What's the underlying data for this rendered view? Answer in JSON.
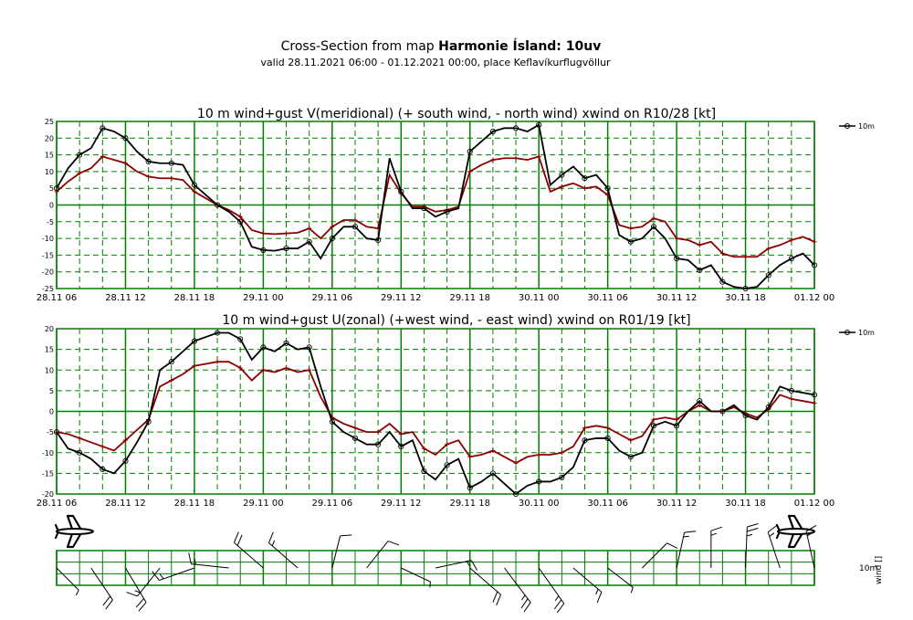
{
  "header": {
    "title_prefix": "Cross-Section from map ",
    "title_bold": "Harmonie Ísland: 10uv",
    "subtitle": "valid 28.11.2021 06:00 - 01.12.2021 00:00, place Keflavíkurflugvöllur"
  },
  "colors": {
    "grid": "#008000",
    "wind": "#000000",
    "gust": "#8b0000"
  },
  "x_ticks": [
    "28.11 06",
    "28.11 12",
    "28.11 18",
    "29.11 00",
    "29.11 06",
    "29.11 12",
    "29.11 18",
    "30.11 00",
    "30.11 06",
    "30.11 12",
    "30.11 18",
    "01.12 00"
  ],
  "chart_data": [
    {
      "type": "line",
      "title": "10 m wind+gust V(meridional) (+ south wind, - north wind) xwind on R10/28 [kt]",
      "legend_label": "10m",
      "ylim": [
        -25,
        25
      ],
      "yticks": [
        25,
        20,
        15,
        10,
        5,
        0,
        -5,
        -10,
        -15,
        -20,
        -25
      ],
      "x_start_hour": 0,
      "x_end_hour": 66,
      "series": [
        {
          "name": "10m wind",
          "x": [
            0,
            1,
            2,
            3,
            4,
            5,
            6,
            7,
            8,
            9,
            10,
            11,
            12,
            13,
            14,
            15,
            16,
            17,
            18,
            19,
            20,
            21,
            22,
            23,
            24,
            25,
            26,
            27,
            28,
            29,
            30,
            31,
            32,
            33,
            34,
            35,
            36,
            37,
            38,
            39,
            40,
            41,
            42,
            43,
            44,
            45,
            46,
            47,
            48,
            49,
            50,
            51,
            52,
            53,
            54,
            55,
            56,
            57,
            58,
            59,
            60,
            61,
            62,
            63,
            64,
            65,
            66
          ],
          "values": [
            5,
            11,
            15,
            17,
            23,
            22,
            20,
            16,
            13,
            12.5,
            12.5,
            12,
            6,
            3,
            0,
            -2,
            -5,
            -12.5,
            -13.5,
            -13.7,
            -13,
            -13,
            -11,
            -16,
            -10,
            -6.5,
            -6.5,
            -10,
            -10.5,
            14,
            4,
            -1,
            -1,
            -3.5,
            -2,
            -1,
            16,
            19,
            22,
            23,
            23,
            22,
            24,
            6,
            9,
            11.5,
            8,
            9,
            5,
            -9,
            -11,
            -10,
            -6.5,
            -10,
            -16,
            -16.5,
            -19.5,
            -18,
            -23,
            -24.5,
            -25,
            -24.5,
            -21,
            -18,
            -16,
            -14.5,
            -18
          ]
        },
        {
          "name": "10m gust",
          "x": [
            0,
            1,
            2,
            3,
            4,
            5,
            6,
            7,
            8,
            9,
            10,
            11,
            12,
            13,
            14,
            15,
            16,
            17,
            18,
            19,
            20,
            21,
            22,
            23,
            24,
            25,
            26,
            27,
            28,
            29,
            30,
            31,
            32,
            33,
            34,
            35,
            36,
            37,
            38,
            39,
            40,
            41,
            42,
            43,
            44,
            45,
            46,
            47,
            48,
            49,
            50,
            51,
            52,
            53,
            54,
            55,
            56,
            57,
            58,
            59,
            60,
            61,
            62,
            63,
            64,
            65,
            66
          ],
          "values": [
            4,
            7,
            9.5,
            11,
            14.5,
            13.5,
            12.5,
            10,
            8.5,
            8,
            8,
            7.5,
            4,
            2,
            0,
            -1.5,
            -3.5,
            -7.5,
            -8.5,
            -8.7,
            -8.5,
            -8.3,
            -7,
            -10,
            -6.5,
            -4.5,
            -4.5,
            -6.5,
            -7,
            9,
            3.5,
            -0.5,
            -0.5,
            -2,
            -1.5,
            -0.5,
            10,
            12,
            13.5,
            14,
            14,
            13.5,
            14.5,
            4,
            5.5,
            6.5,
            5,
            5.5,
            3,
            -6,
            -7,
            -6.5,
            -4,
            -5,
            -10,
            -10.5,
            -12,
            -11,
            -14.5,
            -15.5,
            -15.5,
            -15.5,
            -13,
            -12,
            -10.5,
            -9.5,
            -11
          ]
        }
      ]
    },
    {
      "type": "line",
      "title": "10 m wind+gust U(zonal) (+west wind, - east wind) xwind on R01/19 [kt]",
      "legend_label": "10m",
      "ylim": [
        -20,
        20
      ],
      "yticks": [
        20,
        15,
        10,
        5,
        0,
        -5,
        -10,
        -15,
        -20
      ],
      "x_start_hour": 0,
      "x_end_hour": 66,
      "series": [
        {
          "name": "10m wind",
          "x": [
            0,
            1,
            2,
            3,
            4,
            5,
            6,
            7,
            8,
            9,
            10,
            11,
            12,
            13,
            14,
            15,
            16,
            17,
            18,
            19,
            20,
            21,
            22,
            23,
            24,
            25,
            26,
            27,
            28,
            29,
            30,
            31,
            32,
            33,
            34,
            35,
            36,
            37,
            38,
            39,
            40,
            41,
            42,
            43,
            44,
            45,
            46,
            47,
            48,
            49,
            50,
            51,
            52,
            53,
            54,
            55,
            56,
            57,
            58,
            59,
            60,
            61,
            62,
            63,
            64,
            65,
            66
          ],
          "values": [
            -5,
            -9,
            -10,
            -11.5,
            -14,
            -15,
            -12,
            -7.5,
            -2.5,
            10,
            12,
            14.5,
            17,
            18,
            19,
            19,
            17.5,
            12.5,
            15.5,
            14.5,
            16.5,
            15,
            15.5,
            6,
            -2.5,
            -5,
            -6.5,
            -8,
            -8,
            -5,
            -8.5,
            -7,
            -14.5,
            -16.5,
            -13,
            -11.5,
            -18.5,
            -17,
            -15,
            -17.5,
            -20,
            -18,
            -17,
            -17,
            -16,
            -13.5,
            -7,
            -6.5,
            -6.5,
            -9.5,
            -11,
            -10,
            -3.5,
            -2.5,
            -3.5,
            0,
            2.5,
            0,
            0,
            1.5,
            -1,
            -2,
            1,
            6,
            5,
            4.5,
            4
          ]
        },
        {
          "name": "10m gust",
          "x": [
            0,
            1,
            2,
            3,
            4,
            5,
            6,
            7,
            8,
            9,
            10,
            11,
            12,
            13,
            14,
            15,
            16,
            17,
            18,
            19,
            20,
            21,
            22,
            23,
            24,
            25,
            26,
            27,
            28,
            29,
            30,
            31,
            32,
            33,
            34,
            35,
            36,
            37,
            38,
            39,
            40,
            41,
            42,
            43,
            44,
            45,
            46,
            47,
            48,
            49,
            50,
            51,
            52,
            53,
            54,
            55,
            56,
            57,
            58,
            59,
            60,
            61,
            62,
            63,
            64,
            65,
            66
          ],
          "values": [
            -5,
            -5.5,
            -6.5,
            -7.5,
            -8.5,
            -9.5,
            -7,
            -4.5,
            -2,
            6,
            7.5,
            9,
            11,
            11.5,
            12,
            12,
            10.5,
            7.5,
            10,
            9.5,
            10.5,
            9.5,
            10,
            3.5,
            -1.5,
            -3,
            -4,
            -5,
            -5,
            -3,
            -5.5,
            -5,
            -9,
            -10.5,
            -8,
            -7,
            -11,
            -10.5,
            -9.5,
            -11,
            -12.5,
            -11,
            -10.5,
            -10.5,
            -10,
            -8.5,
            -4,
            -3.5,
            -4,
            -5.5,
            -7,
            -6,
            -2,
            -1.5,
            -2,
            0,
            1.5,
            0,
            0,
            1,
            -0.5,
            -1.5,
            0.5,
            4,
            3,
            2.5,
            2
          ]
        }
      ]
    }
  ],
  "wind_strip": {
    "label_height": "10m",
    "label_param": "wind []"
  }
}
